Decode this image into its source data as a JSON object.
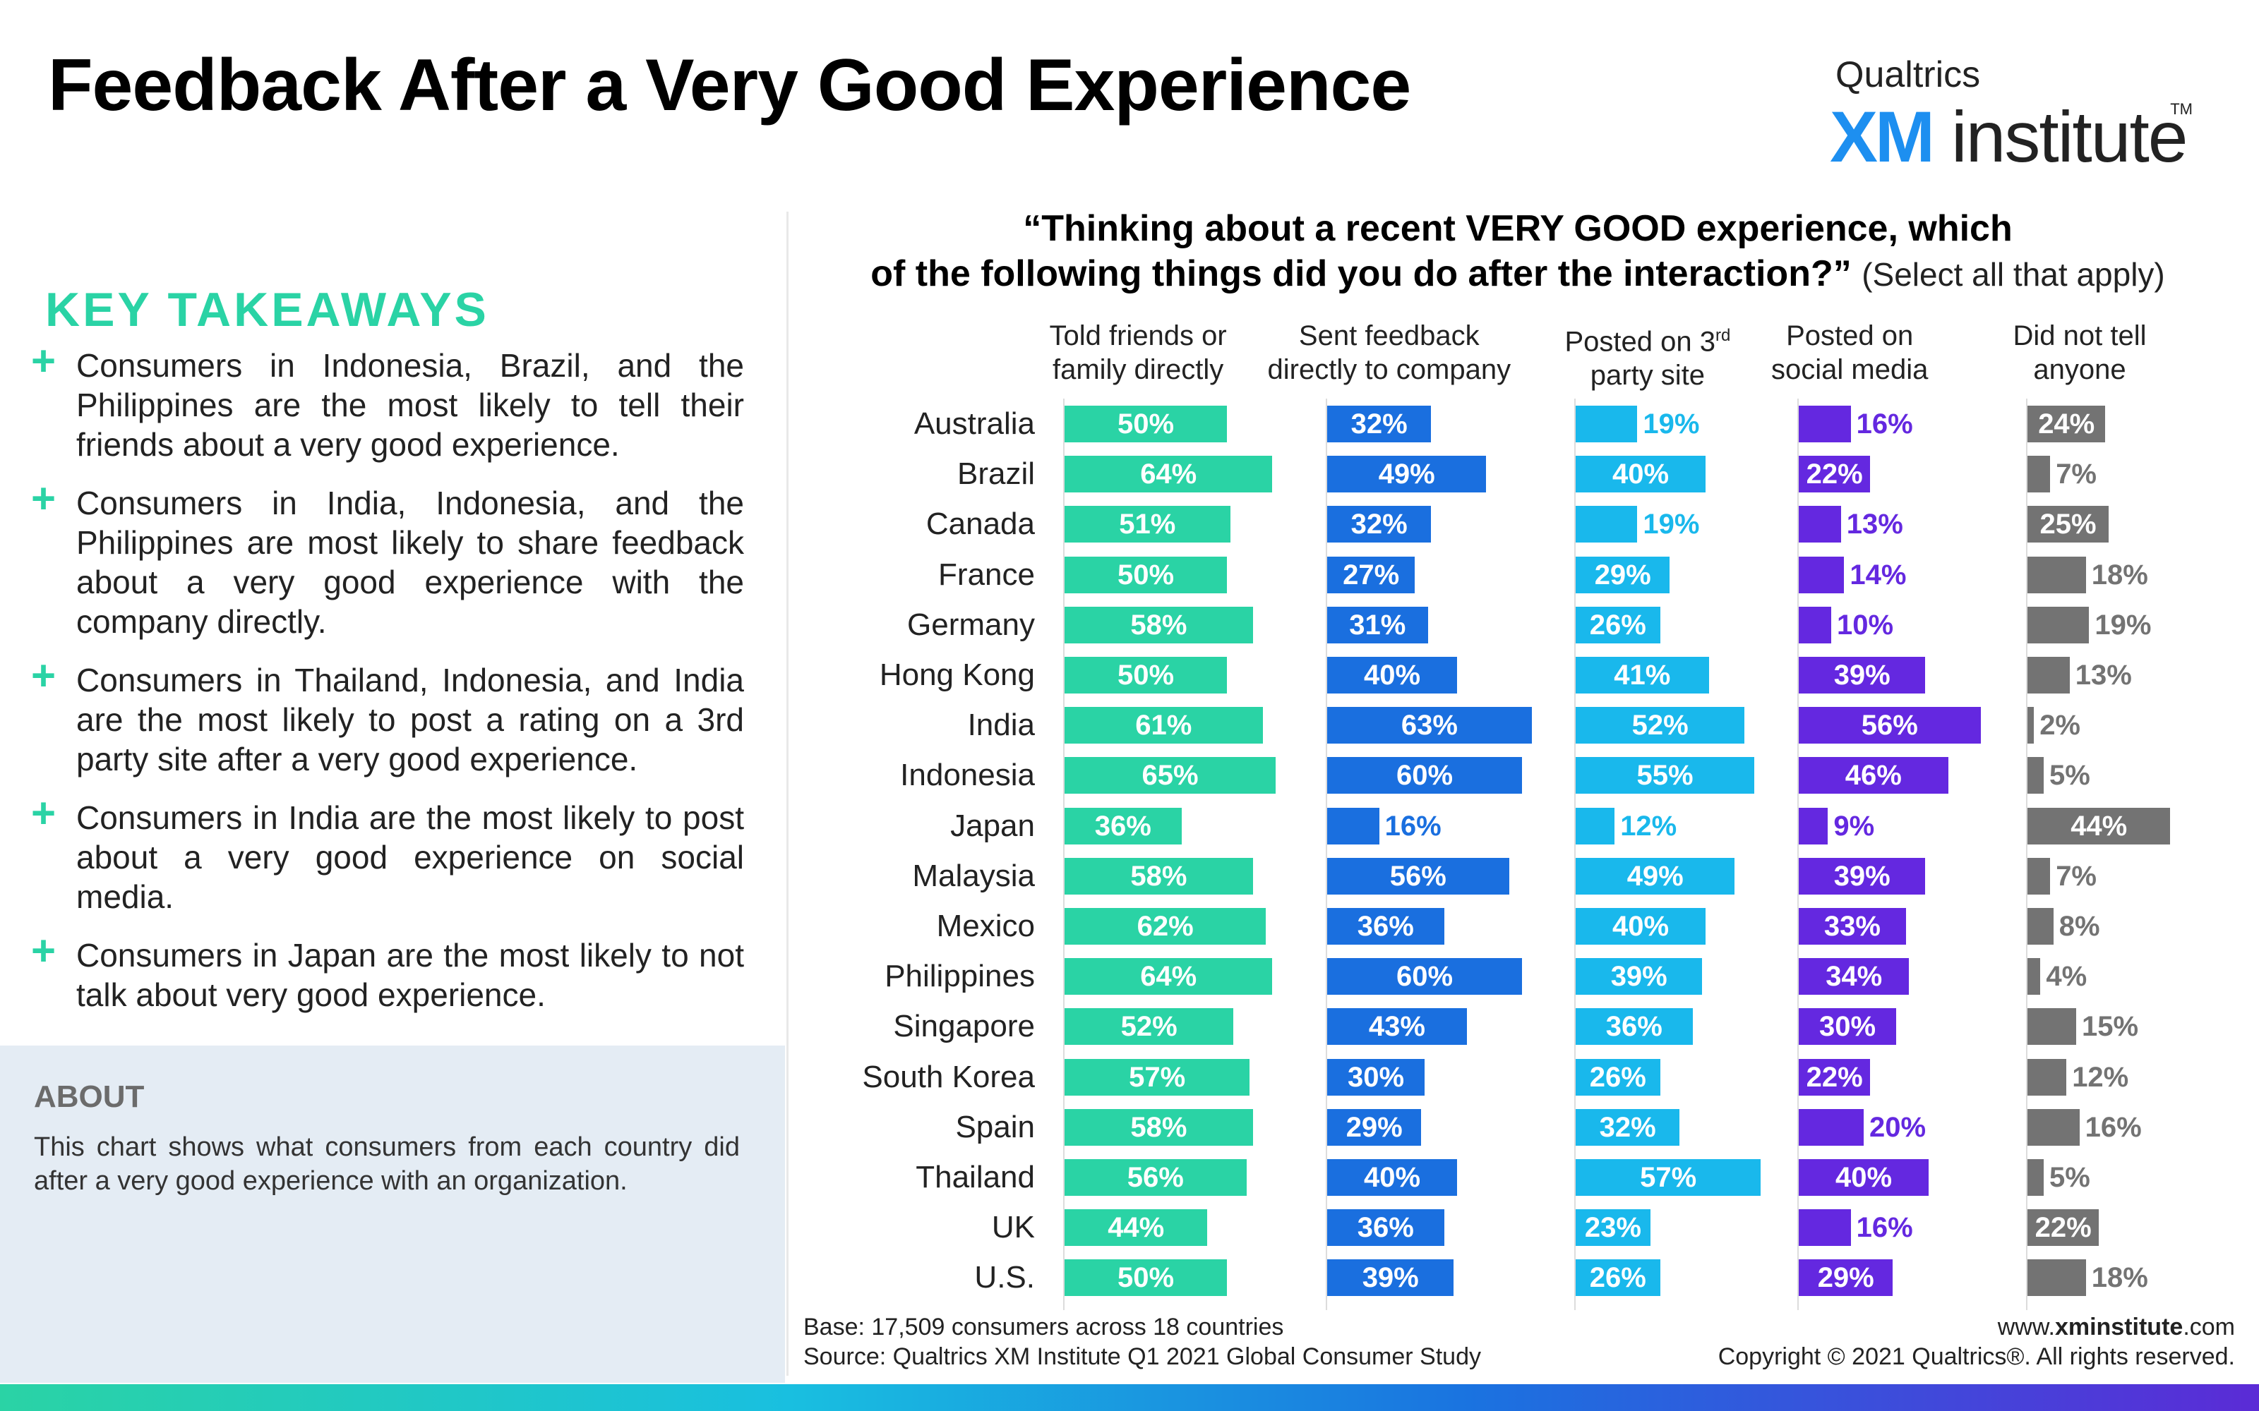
{
  "title": "Feedback After a Very Good Experience",
  "logo": {
    "brand": "Qualtrics",
    "xm": "XM",
    "institute": "institute",
    "tm": "TM"
  },
  "key_takeaways": {
    "heading": "KEY TAKEAWAYS",
    "items": [
      "Consumers in Indonesia, Brazil, and the Philippines are the most likely to tell their friends about a very good experience.",
      "Consumers in India, Indonesia, and the Philippines are most likely to share feedback about a very good experience with the company directly.",
      "Consumers in Thailand, Indonesia, and India are the most likely to post a rating on a 3rd party site after a very good experience.",
      "Consumers in India are the most likely to post about a very good experience on social media.",
      "Consumers in Japan are the most likely to not talk about very good experience."
    ]
  },
  "about": {
    "heading": "ABOUT",
    "text": "This chart shows what consumers from each country did after a very good experience with an organization."
  },
  "question": {
    "line1": "“Thinking about a recent VERY GOOD experience, which",
    "line2": "of the following things did you do after the interaction?”",
    "note": "(Select all that apply)"
  },
  "footer": {
    "base": "Base: 17,509 consumers across 18 countries",
    "source": "Source: Qualtrics XM Institute Q1 2021 Global Consumer Study",
    "url_prefix": "www.",
    "url_bold": "xminstitute",
    "url_suffix": ".com",
    "copyright": "Copyright © 2021 Qualtrics®. All rights reserved."
  },
  "chart_data": {
    "type": "bar",
    "orientation": "horizontal",
    "unit": "%",
    "categories": [
      "Australia",
      "Brazil",
      "Canada",
      "France",
      "Germany",
      "Hong Kong",
      "India",
      "Indonesia",
      "Japan",
      "Malaysia",
      "Mexico",
      "Philippines",
      "Singapore",
      "South Korea",
      "Spain",
      "Thailand",
      "UK",
      "U.S."
    ],
    "series": [
      {
        "name": "Told friends or family directly",
        "header_lines": [
          "Told friends or",
          "family directly"
        ],
        "color": "#2ad3a5",
        "label_color": "#ffffff",
        "values": [
          50,
          64,
          51,
          50,
          58,
          50,
          61,
          65,
          36,
          58,
          62,
          64,
          52,
          57,
          58,
          56,
          44,
          50
        ]
      },
      {
        "name": "Sent feedback directly to company",
        "header_lines": [
          "Sent feedback",
          "directly to company"
        ],
        "color": "#1a6fdf",
        "label_color": "#ffffff",
        "values": [
          32,
          49,
          32,
          27,
          31,
          40,
          63,
          60,
          16,
          56,
          36,
          60,
          43,
          30,
          29,
          40,
          36,
          39
        ]
      },
      {
        "name": "Posted on 3rd party site",
        "header_lines": [
          "Posted on 3",
          "party site"
        ],
        "header_sup": "rd",
        "color": "#19b8ec",
        "label_color": "#ffffff",
        "values": [
          19,
          40,
          19,
          29,
          26,
          41,
          52,
          55,
          12,
          49,
          40,
          39,
          36,
          26,
          32,
          57,
          23,
          26
        ]
      },
      {
        "name": "Posted on social media",
        "header_lines": [
          "Posted on",
          "social media"
        ],
        "color": "#6428e0",
        "label_color": "#ffffff",
        "values": [
          16,
          22,
          13,
          14,
          10,
          39,
          56,
          46,
          9,
          39,
          33,
          34,
          30,
          22,
          20,
          40,
          16,
          29
        ]
      },
      {
        "name": "Did not tell anyone",
        "header_lines": [
          "Did not tell",
          "anyone"
        ],
        "color": "#737373",
        "label_color": "#ffffff",
        "values": [
          24,
          7,
          25,
          18,
          19,
          13,
          2,
          5,
          44,
          7,
          8,
          4,
          15,
          12,
          16,
          5,
          22,
          18
        ]
      }
    ]
  }
}
